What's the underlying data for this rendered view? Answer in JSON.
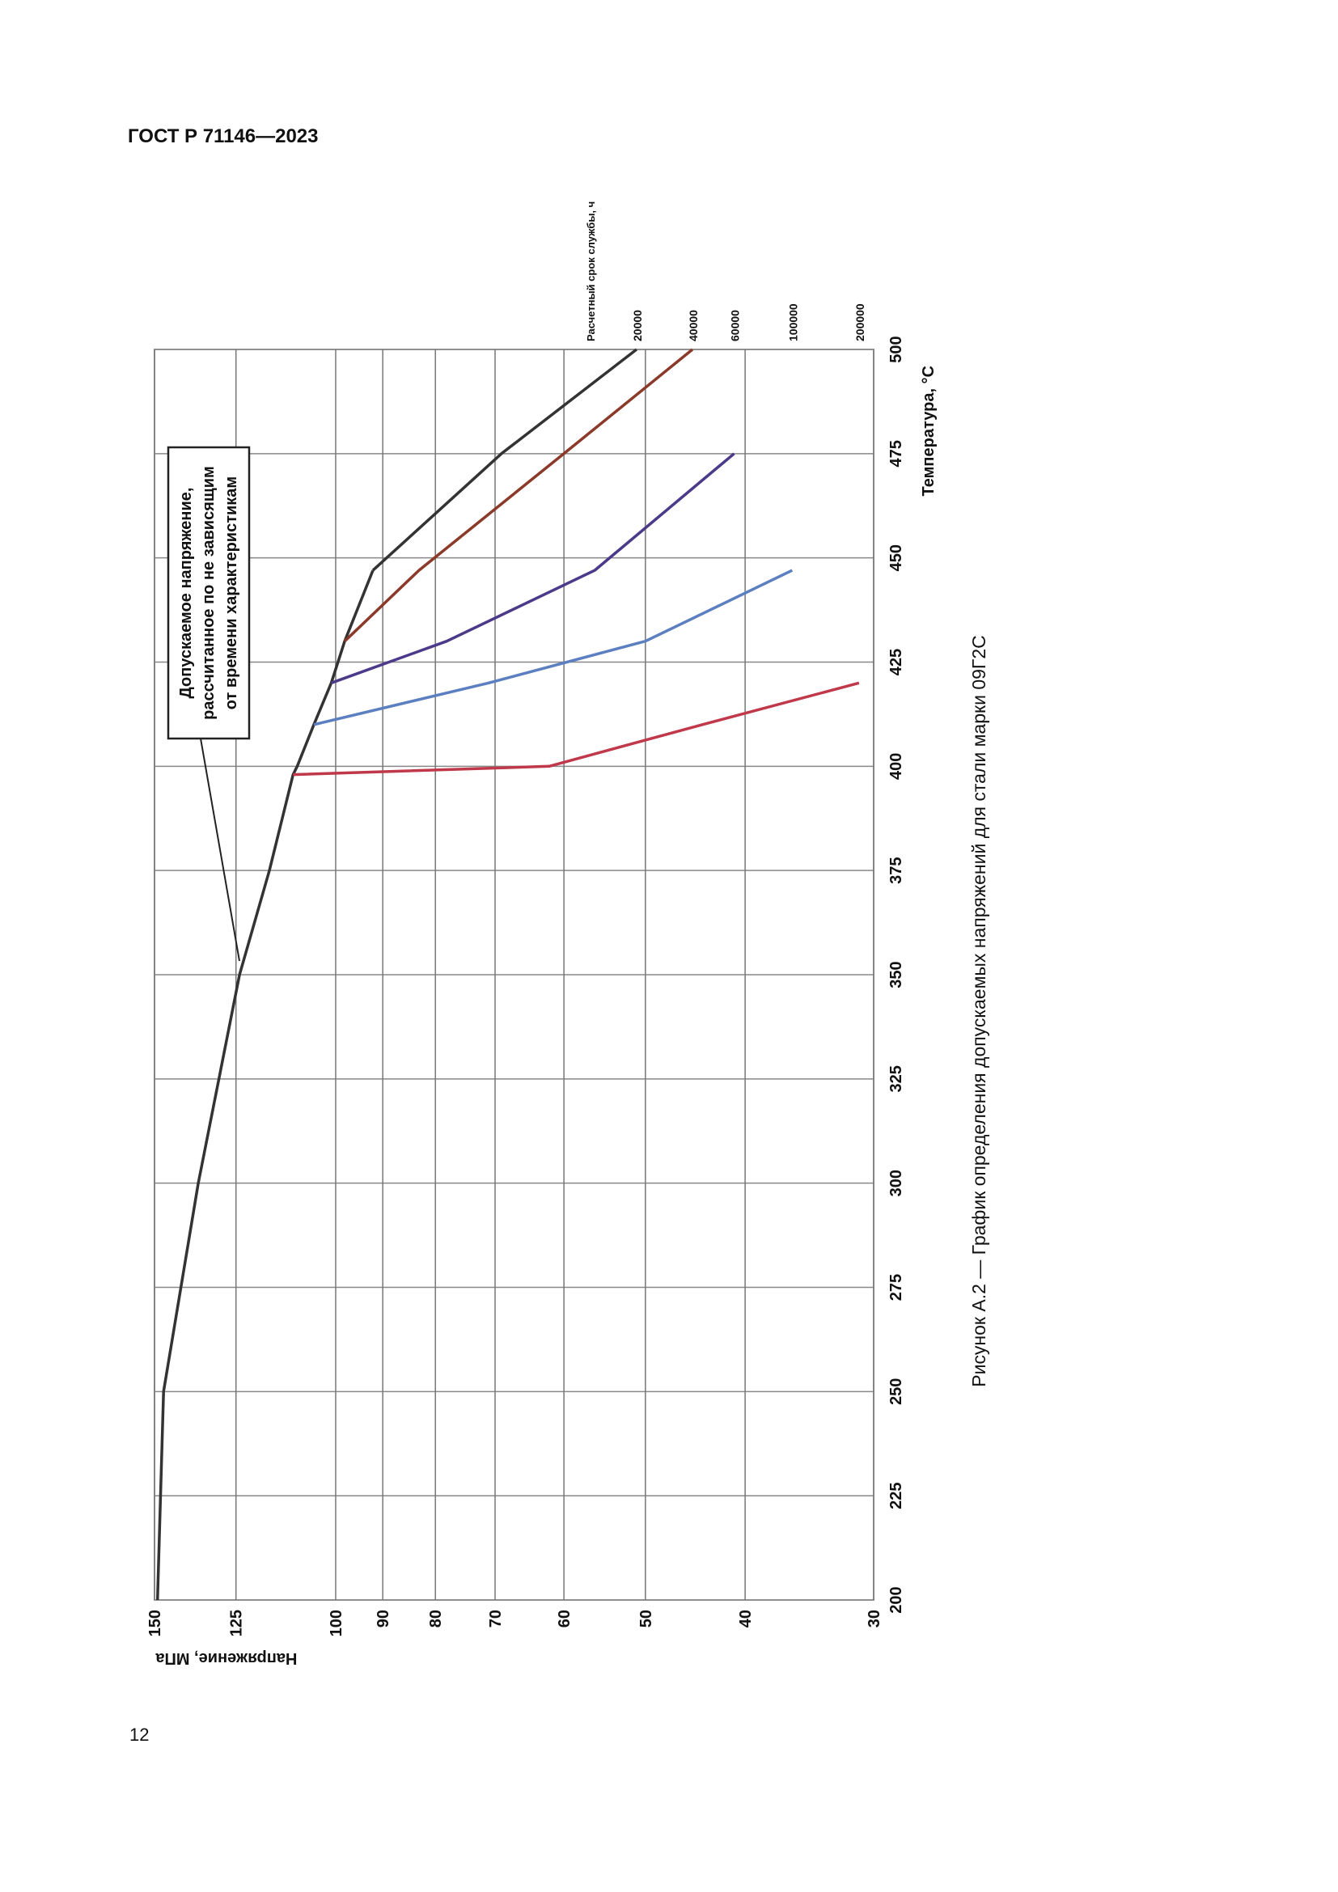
{
  "header": "ГОСТ Р 71146—2023",
  "chart_data": {
    "type": "line",
    "xlabel": "Температура, °С",
    "ylabel": "Напряжение, МПа",
    "legend_title": "Расчетный срок службы, ч",
    "annotation": [
      "Допускаемое напряжение,",
      "рассчитанное по не зависящим",
      "от времени характеристикам"
    ],
    "x": [
      200,
      250,
      300,
      350,
      375,
      398,
      400,
      410,
      420,
      430,
      447,
      475,
      500
    ],
    "series": [
      {
        "name": null,
        "color": "#333333",
        "values": [
          149,
          147,
          136,
          124,
          116,
          110,
          109,
          105,
          101,
          98,
          92,
          null,
          null
        ]
      },
      {
        "name": "20000",
        "color": "#333333",
        "values": [
          null,
          null,
          null,
          null,
          null,
          null,
          null,
          null,
          null,
          null,
          92,
          69,
          51
        ]
      },
      {
        "name": "40000",
        "color": "#8b3a2a",
        "values": [
          null,
          null,
          null,
          null,
          null,
          null,
          null,
          null,
          null,
          98,
          83,
          60,
          45
        ]
      },
      {
        "name": "60000",
        "color": "#4b3a8a",
        "values": [
          null,
          null,
          null,
          null,
          null,
          null,
          null,
          null,
          101,
          78,
          56,
          41,
          null
        ]
      },
      {
        "name": "100000",
        "color": "#5b7fc0",
        "values": [
          null,
          null,
          null,
          null,
          null,
          null,
          null,
          105,
          71,
          50,
          36,
          null,
          null
        ]
      },
      {
        "name": "200000",
        "color": "#c0394a",
        "values": [
          null,
          null,
          null,
          null,
          null,
          110,
          62,
          44,
          31,
          null,
          null,
          null,
          null
        ]
      }
    ],
    "xlim": [
      200,
      500
    ],
    "xticks": [
      200,
      225,
      250,
      275,
      300,
      325,
      350,
      375,
      400,
      425,
      450,
      475,
      500
    ],
    "ylim": [
      30,
      150
    ],
    "yticks": [
      150,
      125,
      100,
      90,
      80,
      70,
      60,
      50,
      40,
      30
    ],
    "log_y": true,
    "grid": true
  },
  "caption": "Рисунок А.2 — График определения допускаемых напряжений для стали марки 09Г2С",
  "page_number": "12"
}
